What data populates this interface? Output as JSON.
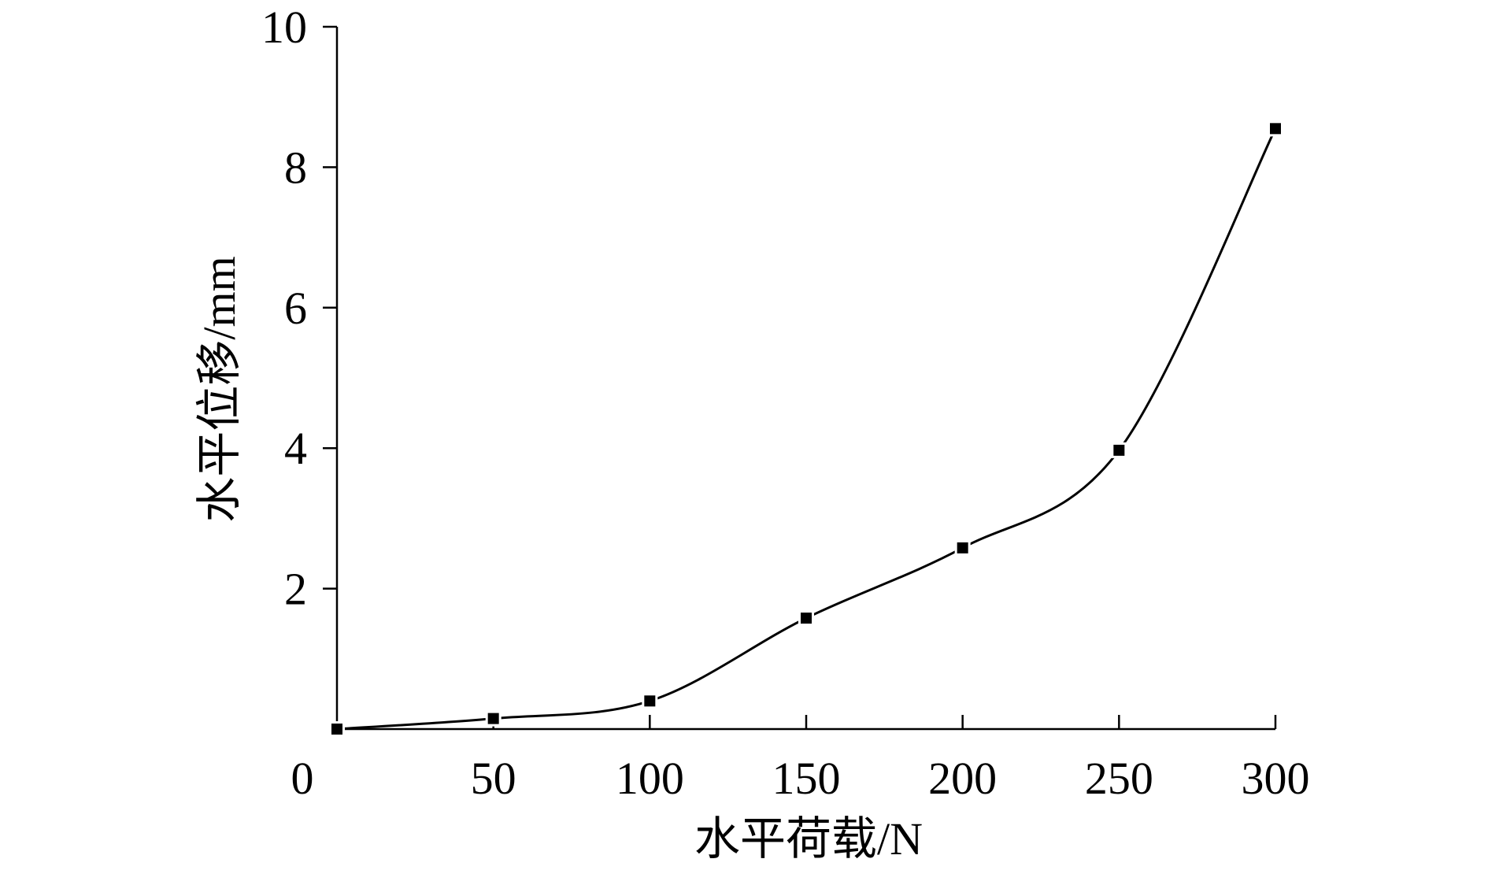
{
  "chart_data": {
    "type": "line",
    "title": "",
    "xlabel": "水平荷载/N",
    "ylabel": "水平位移/mm",
    "xlim": [
      0,
      300
    ],
    "ylim": [
      0,
      10
    ],
    "x_ticks": [
      0,
      50,
      100,
      150,
      200,
      250,
      300
    ],
    "y_ticks": [
      2,
      4,
      6,
      8,
      10
    ],
    "grid": false,
    "legend": "none",
    "marker": "square",
    "smooth": true,
    "series": [
      {
        "x": [
          0,
          50,
          100,
          150,
          200,
          250,
          300
        ],
        "y": [
          0.0,
          0.15,
          0.4,
          1.58,
          2.58,
          3.97,
          8.55
        ]
      }
    ]
  }
}
